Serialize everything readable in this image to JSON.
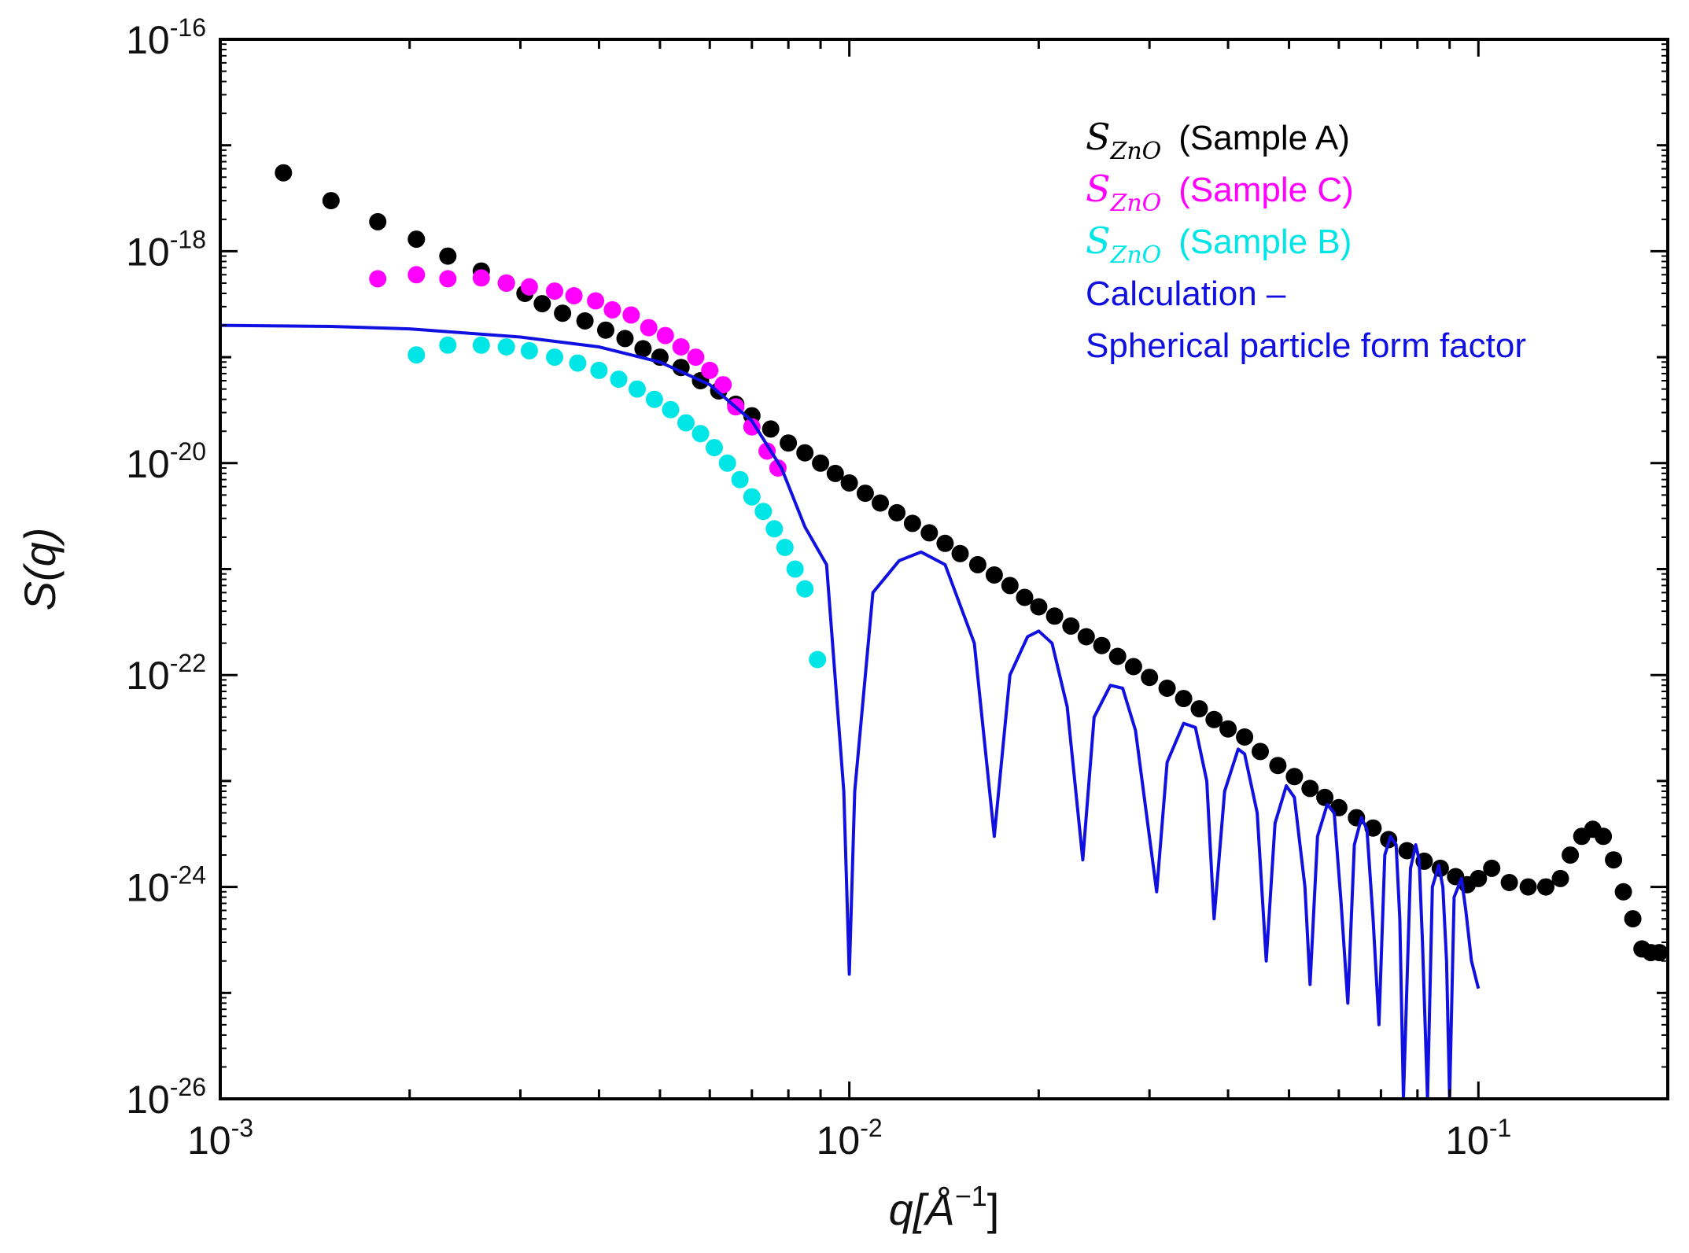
{
  "chart_data": {
    "type": "scatter",
    "title": "",
    "xlabel": "q[Å⁻¹]",
    "xlabel_base": "q[Å",
    "xlabel_sup": "−1",
    "xlabel_close": "]",
    "ylabel": "S(q)",
    "xscale": "log",
    "yscale": "log",
    "xlim": [
      0.001,
      0.2
    ],
    "ylim": [
      1e-26,
      1e-16
    ],
    "x_ticks": [
      {
        "value": 0.001,
        "base": "10",
        "exp": "-3"
      },
      {
        "value": 0.01,
        "base": "10",
        "exp": "-2"
      },
      {
        "value": 0.1,
        "base": "10",
        "exp": "-1"
      }
    ],
    "y_ticks": [
      {
        "value": 1e-16,
        "base": "10",
        "exp": "-16"
      },
      {
        "value": 1e-18,
        "base": "10",
        "exp": "-18"
      },
      {
        "value": 1e-20,
        "base": "10",
        "exp": "-20"
      },
      {
        "value": 1e-22,
        "base": "10",
        "exp": "-22"
      },
      {
        "value": 1e-24,
        "base": "10",
        "exp": "-24"
      },
      {
        "value": 1e-26,
        "base": "10",
        "exp": "-26"
      }
    ],
    "legend_position": "top-right",
    "legend": [
      {
        "symbol": "S",
        "subscript": "ZnO",
        "label": "(Sample A)",
        "color": "#000000"
      },
      {
        "symbol": "S",
        "subscript": "ZnO",
        "label": "(Sample C)",
        "color": "#ff00ff"
      },
      {
        "symbol": "S",
        "subscript": "ZnO",
        "label": "(Sample B)",
        "color": "#00e5e5"
      },
      {
        "label": "Calculation –",
        "color": "#1010e0"
      },
      {
        "label": "Spherical particle form factor",
        "color": "#1010e0"
      }
    ],
    "series": [
      {
        "name": "Sample A",
        "kind": "scatter",
        "color": "#000000",
        "points": [
          [
            0.00126,
            5.5e-18
          ],
          [
            0.0015,
            3e-18
          ],
          [
            0.00178,
            1.9e-18
          ],
          [
            0.00205,
            1.3e-18
          ],
          [
            0.0023,
            9e-19
          ],
          [
            0.0026,
            6.5e-19
          ],
          [
            0.00285,
            5e-19
          ],
          [
            0.00305,
            4e-19
          ],
          [
            0.00325,
            3.2e-19
          ],
          [
            0.0035,
            2.6e-19
          ],
          [
            0.0038,
            2.2e-19
          ],
          [
            0.0041,
            1.8e-19
          ],
          [
            0.0044,
            1.5e-19
          ],
          [
            0.0047,
            1.2e-19
          ],
          [
            0.005,
            1e-19
          ],
          [
            0.0054,
            8e-20
          ],
          [
            0.0058,
            6e-20
          ],
          [
            0.0062,
            4.8e-20
          ],
          [
            0.0066,
            3.6e-20
          ],
          [
            0.007,
            2.8e-20
          ],
          [
            0.0075,
            2.1e-20
          ],
          [
            0.008,
            1.55e-20
          ],
          [
            0.0085,
            1.25e-20
          ],
          [
            0.009,
            1e-20
          ],
          [
            0.0095,
            8e-21
          ],
          [
            0.01,
            6.5e-21
          ],
          [
            0.0106,
            5.2e-21
          ],
          [
            0.0112,
            4.2e-21
          ],
          [
            0.0119,
            3.4e-21
          ],
          [
            0.0126,
            2.7e-21
          ],
          [
            0.0134,
            2.2e-21
          ],
          [
            0.0142,
            1.75e-21
          ],
          [
            0.015,
            1.4e-21
          ],
          [
            0.016,
            1.1e-21
          ],
          [
            0.017,
            8.8e-22
          ],
          [
            0.018,
            7e-22
          ],
          [
            0.019,
            5.4e-22
          ],
          [
            0.02,
            4.4e-22
          ],
          [
            0.0212,
            3.6e-22
          ],
          [
            0.0225,
            2.9e-22
          ],
          [
            0.0238,
            2.3e-22
          ],
          [
            0.0252,
            1.9e-22
          ],
          [
            0.0267,
            1.5e-22
          ],
          [
            0.0283,
            1.2e-22
          ],
          [
            0.03,
            9.5e-23
          ],
          [
            0.032,
            7.5e-23
          ],
          [
            0.034,
            6e-23
          ],
          [
            0.036,
            4.8e-23
          ],
          [
            0.038,
            3.8e-23
          ],
          [
            0.04,
            3.1e-23
          ],
          [
            0.0425,
            2.6e-23
          ],
          [
            0.045,
            1.9e-23
          ],
          [
            0.048,
            1.4e-23
          ],
          [
            0.051,
            1.1e-23
          ],
          [
            0.054,
            8.5e-24
          ],
          [
            0.057,
            7e-24
          ],
          [
            0.06,
            5.6e-24
          ],
          [
            0.064,
            4.5e-24
          ],
          [
            0.068,
            3.6e-24
          ],
          [
            0.072,
            2.8e-24
          ],
          [
            0.077,
            2.2e-24
          ],
          [
            0.082,
            1.75e-24
          ],
          [
            0.087,
            1.5e-24
          ],
          [
            0.092,
            1.25e-24
          ],
          [
            0.096,
            1.05e-24
          ],
          [
            0.1,
            1.2e-24
          ],
          [
            0.105,
            1.5e-24
          ],
          [
            0.112,
            1.1e-24
          ],
          [
            0.12,
            1e-24
          ],
          [
            0.128,
            1e-24
          ],
          [
            0.135,
            1.2e-24
          ],
          [
            0.14,
            2e-24
          ],
          [
            0.146,
            3e-24
          ],
          [
            0.152,
            3.5e-24
          ],
          [
            0.158,
            3e-24
          ],
          [
            0.164,
            1.8e-24
          ],
          [
            0.17,
            9e-25
          ],
          [
            0.176,
            5e-25
          ],
          [
            0.182,
            2.6e-25
          ],
          [
            0.188,
            2.4e-25
          ],
          [
            0.194,
            2.4e-25
          ]
        ]
      },
      {
        "name": "Sample C",
        "kind": "scatter",
        "color": "#ff00ff",
        "points": [
          [
            0.00178,
            5.5e-19
          ],
          [
            0.00205,
            6e-19
          ],
          [
            0.0023,
            5.5e-19
          ],
          [
            0.0026,
            5.6e-19
          ],
          [
            0.00285,
            5e-19
          ],
          [
            0.0031,
            4.6e-19
          ],
          [
            0.0034,
            4.2e-19
          ],
          [
            0.00365,
            3.8e-19
          ],
          [
            0.00395,
            3.4e-19
          ],
          [
            0.0042,
            2.8e-19
          ],
          [
            0.0045,
            2.5e-19
          ],
          [
            0.0048,
            1.9e-19
          ],
          [
            0.0051,
            1.6e-19
          ],
          [
            0.0054,
            1.25e-19
          ],
          [
            0.0057,
            1e-19
          ],
          [
            0.006,
            7.5e-20
          ],
          [
            0.0063,
            5.5e-20
          ],
          [
            0.0066,
            3.4e-20
          ],
          [
            0.007,
            2.2e-20
          ],
          [
            0.0074,
            1.3e-20
          ],
          [
            0.0077,
            9e-21
          ]
        ]
      },
      {
        "name": "Sample B",
        "kind": "scatter",
        "color": "#00e5e5",
        "points": [
          [
            0.00205,
            1.05e-19
          ],
          [
            0.0023,
            1.3e-19
          ],
          [
            0.0026,
            1.3e-19
          ],
          [
            0.00285,
            1.25e-19
          ],
          [
            0.0031,
            1.15e-19
          ],
          [
            0.0034,
            1e-19
          ],
          [
            0.0037,
            8.8e-20
          ],
          [
            0.004,
            7.5e-20
          ],
          [
            0.0043,
            6.2e-20
          ],
          [
            0.0046,
            5e-20
          ],
          [
            0.0049,
            4e-20
          ],
          [
            0.0052,
            3.2e-20
          ],
          [
            0.0055,
            2.4e-20
          ],
          [
            0.0058,
            1.9e-20
          ],
          [
            0.0061,
            1.4e-20
          ],
          [
            0.0064,
            1e-20
          ],
          [
            0.0067,
            7e-21
          ],
          [
            0.007,
            4.8e-21
          ],
          [
            0.0073,
            3.5e-21
          ],
          [
            0.0076,
            2.4e-21
          ],
          [
            0.0079,
            1.6e-21
          ],
          [
            0.0082,
            1e-21
          ],
          [
            0.0085,
            6.5e-22
          ],
          [
            0.0089,
            1.4e-22
          ]
        ]
      },
      {
        "name": "Calculation – Spherical particle form factor",
        "kind": "line",
        "color": "#1010e0",
        "points": [
          [
            0.001,
            2e-19
          ],
          [
            0.0015,
            1.95e-19
          ],
          [
            0.002,
            1.85e-19
          ],
          [
            0.003,
            1.55e-19
          ],
          [
            0.004,
            1.25e-19
          ],
          [
            0.005,
            9e-20
          ],
          [
            0.006,
            5.5e-20
          ],
          [
            0.007,
            2.5e-20
          ],
          [
            0.0078,
            9e-21
          ],
          [
            0.0085,
            2.5e-21
          ],
          [
            0.0092,
            1.1e-21
          ],
          [
            0.0098,
            8e-24
          ],
          [
            0.01,
            1.5e-25
          ],
          [
            0.0102,
            8e-24
          ],
          [
            0.0109,
            6e-22
          ],
          [
            0.012,
            1.2e-21
          ],
          [
            0.013,
            1.45e-21
          ],
          [
            0.0142,
            1.1e-21
          ],
          [
            0.0158,
            2e-22
          ],
          [
            0.017,
            3e-24
          ],
          [
            0.018,
            1e-22
          ],
          [
            0.0192,
            2.3e-22
          ],
          [
            0.02,
            2.6e-22
          ],
          [
            0.021,
            2e-22
          ],
          [
            0.0222,
            5e-23
          ],
          [
            0.0235,
            1.8e-24
          ],
          [
            0.0245,
            4e-23
          ],
          [
            0.026,
            8e-23
          ],
          [
            0.0272,
            7.5e-23
          ],
          [
            0.0285,
            3e-23
          ],
          [
            0.0308,
            9e-25
          ],
          [
            0.032,
            1.5e-23
          ],
          [
            0.034,
            3.5e-23
          ],
          [
            0.0355,
            3.2e-23
          ],
          [
            0.037,
            1e-23
          ],
          [
            0.038,
            5e-25
          ],
          [
            0.0395,
            8e-24
          ],
          [
            0.0415,
            2e-23
          ],
          [
            0.0425,
            1.8e-23
          ],
          [
            0.0445,
            5e-24
          ],
          [
            0.046,
            2e-25
          ],
          [
            0.0475,
            4e-24
          ],
          [
            0.0495,
            9e-24
          ],
          [
            0.051,
            7e-24
          ],
          [
            0.053,
            1e-24
          ],
          [
            0.054,
            1.2e-25
          ],
          [
            0.0555,
            3e-24
          ],
          [
            0.0575,
            6e-24
          ],
          [
            0.059,
            5e-24
          ],
          [
            0.0605,
            7e-25
          ],
          [
            0.062,
            8e-26
          ],
          [
            0.0635,
            2.5e-24
          ],
          [
            0.0652,
            4.5e-24
          ],
          [
            0.0665,
            3.5e-24
          ],
          [
            0.068,
            5e-25
          ],
          [
            0.0695,
            5e-26
          ],
          [
            0.071,
            2e-24
          ],
          [
            0.0725,
            3e-24
          ],
          [
            0.074,
            2.5e-24
          ],
          [
            0.075,
            5e-25
          ],
          [
            0.076,
            1e-26
          ],
          [
            0.078,
            1.5e-24
          ],
          [
            0.0795,
            2.5e-24
          ],
          [
            0.0805,
            1.8e-24
          ],
          [
            0.0815,
            3e-25
          ],
          [
            0.083,
            1e-26
          ],
          [
            0.0845,
            1e-24
          ],
          [
            0.0865,
            1.6e-24
          ],
          [
            0.0878,
            1e-24
          ],
          [
            0.089,
            2e-25
          ],
          [
            0.09,
            1e-26
          ],
          [
            0.0915,
            8e-25
          ],
          [
            0.094,
            1.2e-24
          ],
          [
            0.0955,
            6e-25
          ],
          [
            0.0975,
            2e-25
          ],
          [
            0.1,
            1.1e-25
          ]
        ]
      }
    ]
  }
}
